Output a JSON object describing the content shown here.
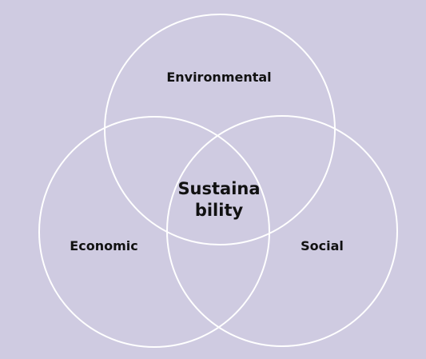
{
  "colors": {
    "background": "#cfcbe1",
    "circle_stroke": "#ffffff",
    "text": "#111111"
  },
  "venn": {
    "top": "Environmental",
    "left": "Economic",
    "right": "Social",
    "center_line1": "Sustaina",
    "center_line2": "bility"
  }
}
